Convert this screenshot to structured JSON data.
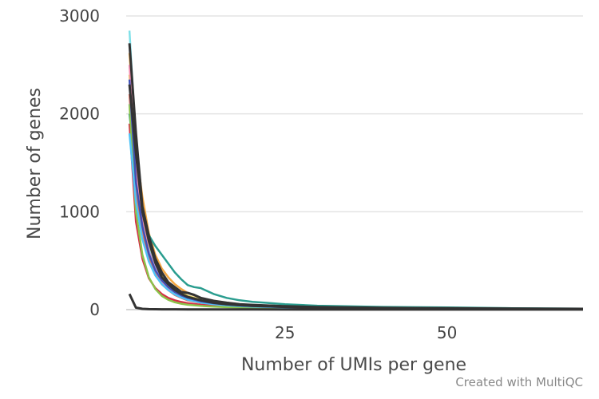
{
  "chart_data": {
    "type": "line",
    "xlabel": "Number of UMIs per gene",
    "ylabel": "Number of genes",
    "xlim": [
      0.5,
      71
    ],
    "ylim": [
      0,
      3000
    ],
    "x_ticks": [
      25,
      50
    ],
    "y_ticks": [
      0,
      1000,
      2000,
      3000
    ],
    "grid": "horizontal",
    "legend": "none",
    "series": [
      {
        "color": "#7fe0e8",
        "x": [
          1,
          2,
          3,
          4,
          5,
          6,
          7,
          8,
          9,
          10,
          12,
          14,
          16,
          18,
          20,
          25,
          30,
          40,
          50,
          60,
          71
        ],
        "y": [
          2850,
          1700,
          1100,
          650,
          450,
          320,
          240,
          180,
          140,
          110,
          80,
          60,
          50,
          40,
          35,
          25,
          20,
          15,
          12,
          10,
          8
        ]
      },
      {
        "color": "#f4a742",
        "x": [
          1,
          2,
          3,
          4,
          5,
          6,
          7,
          8,
          9,
          10,
          12,
          14,
          16,
          18,
          20,
          25,
          30,
          40,
          50,
          60,
          71
        ],
        "y": [
          2620,
          1650,
          1150,
          780,
          560,
          420,
          330,
          260,
          210,
          170,
          120,
          90,
          70,
          55,
          45,
          30,
          22,
          15,
          12,
          10,
          8
        ]
      },
      {
        "color": "#e8d44d",
        "x": [
          1,
          2,
          3,
          4,
          5,
          6,
          7,
          8,
          9,
          10,
          12,
          14,
          16,
          18,
          20,
          25,
          30,
          40,
          50,
          60,
          71
        ],
        "y": [
          2400,
          1500,
          1000,
          680,
          480,
          350,
          270,
          210,
          170,
          140,
          100,
          75,
          60,
          48,
          40,
          28,
          20,
          14,
          11,
          9,
          7
        ]
      },
      {
        "color": "#2a9d8f",
        "x": [
          1,
          2,
          3,
          4,
          5,
          6,
          7,
          8,
          9,
          10,
          11,
          12,
          14,
          16,
          18,
          20,
          22,
          25,
          30,
          40,
          50,
          60,
          71
        ],
        "y": [
          2000,
          1400,
          1000,
          760,
          650,
          560,
          470,
          380,
          310,
          250,
          230,
          220,
          160,
          120,
          95,
          80,
          70,
          55,
          40,
          28,
          22,
          15,
          10
        ]
      },
      {
        "color": "#e76f51",
        "x": [
          1,
          2,
          3,
          4,
          5,
          6,
          7,
          8,
          9,
          10,
          12,
          14,
          16,
          18,
          20,
          25,
          30,
          40,
          50,
          60,
          71
        ],
        "y": [
          2200,
          1200,
          800,
          520,
          360,
          260,
          200,
          150,
          120,
          95,
          70,
          55,
          45,
          38,
          32,
          24,
          18,
          12,
          10,
          8,
          6
        ]
      },
      {
        "color": "#d62d46",
        "x": [
          1,
          2,
          3,
          4,
          5,
          6,
          7,
          8,
          9,
          10,
          12,
          14,
          16,
          18,
          20,
          25,
          30,
          40,
          50,
          60,
          71
        ],
        "y": [
          1900,
          900,
          520,
          320,
          220,
          160,
          120,
          95,
          78,
          65,
          50,
          40,
          33,
          28,
          24,
          18,
          14,
          10,
          8,
          6,
          5
        ]
      },
      {
        "color": "#8bc34a",
        "x": [
          1,
          2,
          3,
          4,
          5,
          6,
          7,
          8,
          9,
          10,
          12,
          14,
          16,
          18,
          20,
          25,
          30,
          40,
          50,
          60,
          71
        ],
        "y": [
          2100,
          1000,
          560,
          330,
          210,
          140,
          100,
          75,
          60,
          50,
          38,
          30,
          25,
          22,
          19,
          15,
          12,
          9,
          7,
          6,
          5
        ]
      },
      {
        "color": "#b39ddb",
        "x": [
          1,
          2,
          3,
          4,
          5,
          6,
          7,
          8,
          9,
          10,
          12,
          14,
          16,
          18,
          20,
          25,
          30,
          40,
          50,
          60,
          71
        ],
        "y": [
          2300,
          1350,
          880,
          600,
          430,
          320,
          240,
          190,
          150,
          120,
          85,
          65,
          52,
          42,
          36,
          26,
          20,
          14,
          11,
          9,
          7
        ]
      },
      {
        "color": "#f48fb1",
        "x": [
          1,
          2,
          3,
          4,
          5,
          6,
          7,
          8,
          9,
          10,
          12,
          14,
          16,
          18,
          20,
          25,
          30,
          40,
          50,
          60,
          71
        ],
        "y": [
          2500,
          1450,
          900,
          580,
          400,
          290,
          220,
          170,
          135,
          110,
          80,
          60,
          48,
          40,
          34,
          24,
          18,
          12,
          10,
          8,
          6
        ]
      },
      {
        "color": "#4fc3f7",
        "x": [
          1,
          2,
          3,
          4,
          5,
          6,
          7,
          8,
          9,
          10,
          12,
          14,
          16,
          18,
          20,
          25,
          30,
          40,
          50,
          60,
          71
        ],
        "y": [
          1800,
          1100,
          720,
          490,
          350,
          260,
          200,
          155,
          125,
          100,
          72,
          55,
          44,
          36,
          30,
          22,
          17,
          12,
          9,
          7,
          6
        ]
      },
      {
        "color": "#3f51b5",
        "x": [
          1,
          2,
          3,
          4,
          5,
          6,
          7,
          8,
          9,
          10,
          12,
          14,
          16,
          18,
          20,
          25,
          30,
          40,
          50,
          60,
          71
        ],
        "y": [
          2350,
          1300,
          850,
          570,
          400,
          300,
          230,
          180,
          145,
          120,
          85,
          65,
          52,
          42,
          36,
          26,
          20,
          14,
          11,
          9,
          7
        ]
      },
      {
        "color": "#333333",
        "x": [
          1,
          2,
          3,
          4,
          5,
          6,
          7,
          8,
          9,
          10,
          11,
          12,
          14,
          16,
          18,
          20,
          25,
          30,
          40,
          50,
          60,
          71
        ],
        "y": [
          2720,
          1800,
          1050,
          750,
          520,
          380,
          280,
          230,
          180,
          170,
          150,
          120,
          90,
          70,
          55,
          48,
          35,
          26,
          18,
          14,
          10,
          8
        ]
      },
      {
        "color": "#333333",
        "x": [
          1,
          2,
          3,
          4,
          5,
          6,
          7,
          8,
          9,
          10,
          12,
          14,
          16,
          18,
          20,
          25,
          30,
          40,
          50,
          60,
          71
        ],
        "y": [
          2300,
          1600,
          1000,
          700,
          480,
          330,
          260,
          200,
          160,
          130,
          95,
          70,
          55,
          45,
          38,
          28,
          20,
          14,
          11,
          9,
          7
        ]
      },
      {
        "color": "#333333",
        "x": [
          1,
          2,
          3,
          4,
          5,
          6,
          8,
          10,
          15,
          20,
          30,
          40,
          50,
          60,
          71
        ],
        "y": [
          160,
          20,
          8,
          5,
          4,
          3,
          3,
          2,
          2,
          2,
          1,
          1,
          1,
          1,
          1
        ]
      }
    ]
  },
  "credit": "Created with MultiQC"
}
